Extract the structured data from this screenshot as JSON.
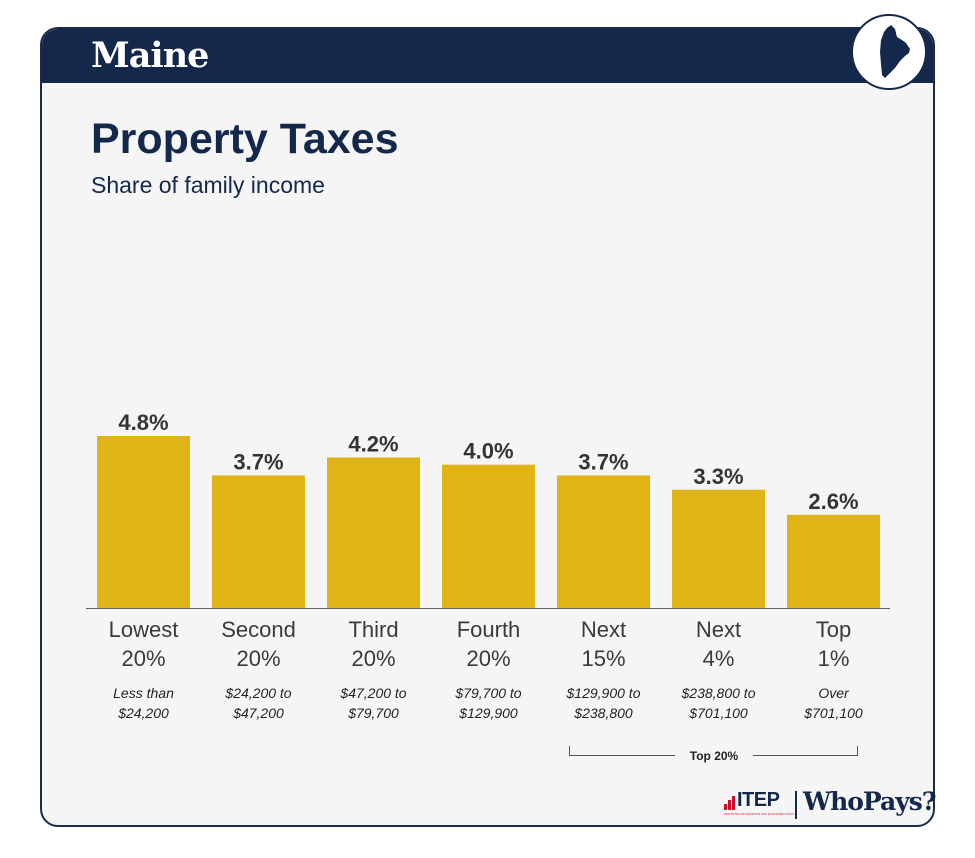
{
  "header": {
    "state": "Maine"
  },
  "chart_data": {
    "type": "bar",
    "title": "Property Taxes",
    "subtitle": "Share of family income",
    "categories": [
      "Lowest 20%",
      "Second 20%",
      "Third 20%",
      "Fourth 20%",
      "Next 15%",
      "Next 4%",
      "Top 1%"
    ],
    "category_lines": [
      [
        "Lowest",
        "20%"
      ],
      [
        "Second",
        "20%"
      ],
      [
        "Third",
        "20%"
      ],
      [
        "Fourth",
        "20%"
      ],
      [
        "Next",
        "15%"
      ],
      [
        "Next",
        "4%"
      ],
      [
        "Top",
        "1%"
      ]
    ],
    "income_ranges": [
      [
        "Less than",
        "$24,200"
      ],
      [
        "$24,200 to",
        "$47,200"
      ],
      [
        "$47,200 to",
        "$79,700"
      ],
      [
        "$79,700 to",
        "$129,900"
      ],
      [
        "$129,900 to",
        "$238,800"
      ],
      [
        "$238,800 to",
        "$701,100"
      ],
      [
        "Over",
        "$701,100"
      ]
    ],
    "values": [
      4.8,
      3.7,
      4.2,
      4.0,
      3.7,
      3.3,
      2.6
    ],
    "value_labels": [
      "4.8%",
      "3.7%",
      "4.2%",
      "4.0%",
      "3.7%",
      "3.3%",
      "2.6%"
    ],
    "ylim": [
      0,
      4.8
    ],
    "grid": false,
    "bar_color": "#e1b416",
    "group_annotation": {
      "label": "Top 20%",
      "covers": [
        "Next 15%",
        "Next 4%",
        "Top 1%"
      ]
    }
  },
  "colors": {
    "navy": "#14284b",
    "gold": "#e1b416",
    "itep_red": "#c8102e"
  },
  "footer": {
    "itep": "ITEP",
    "itep_sub": "INSTITUTE ON TAXATION AND ECONOMIC POLICY",
    "whopays": "WhoPays?"
  },
  "icons": {
    "badge": "maine-state-outline-icon"
  }
}
